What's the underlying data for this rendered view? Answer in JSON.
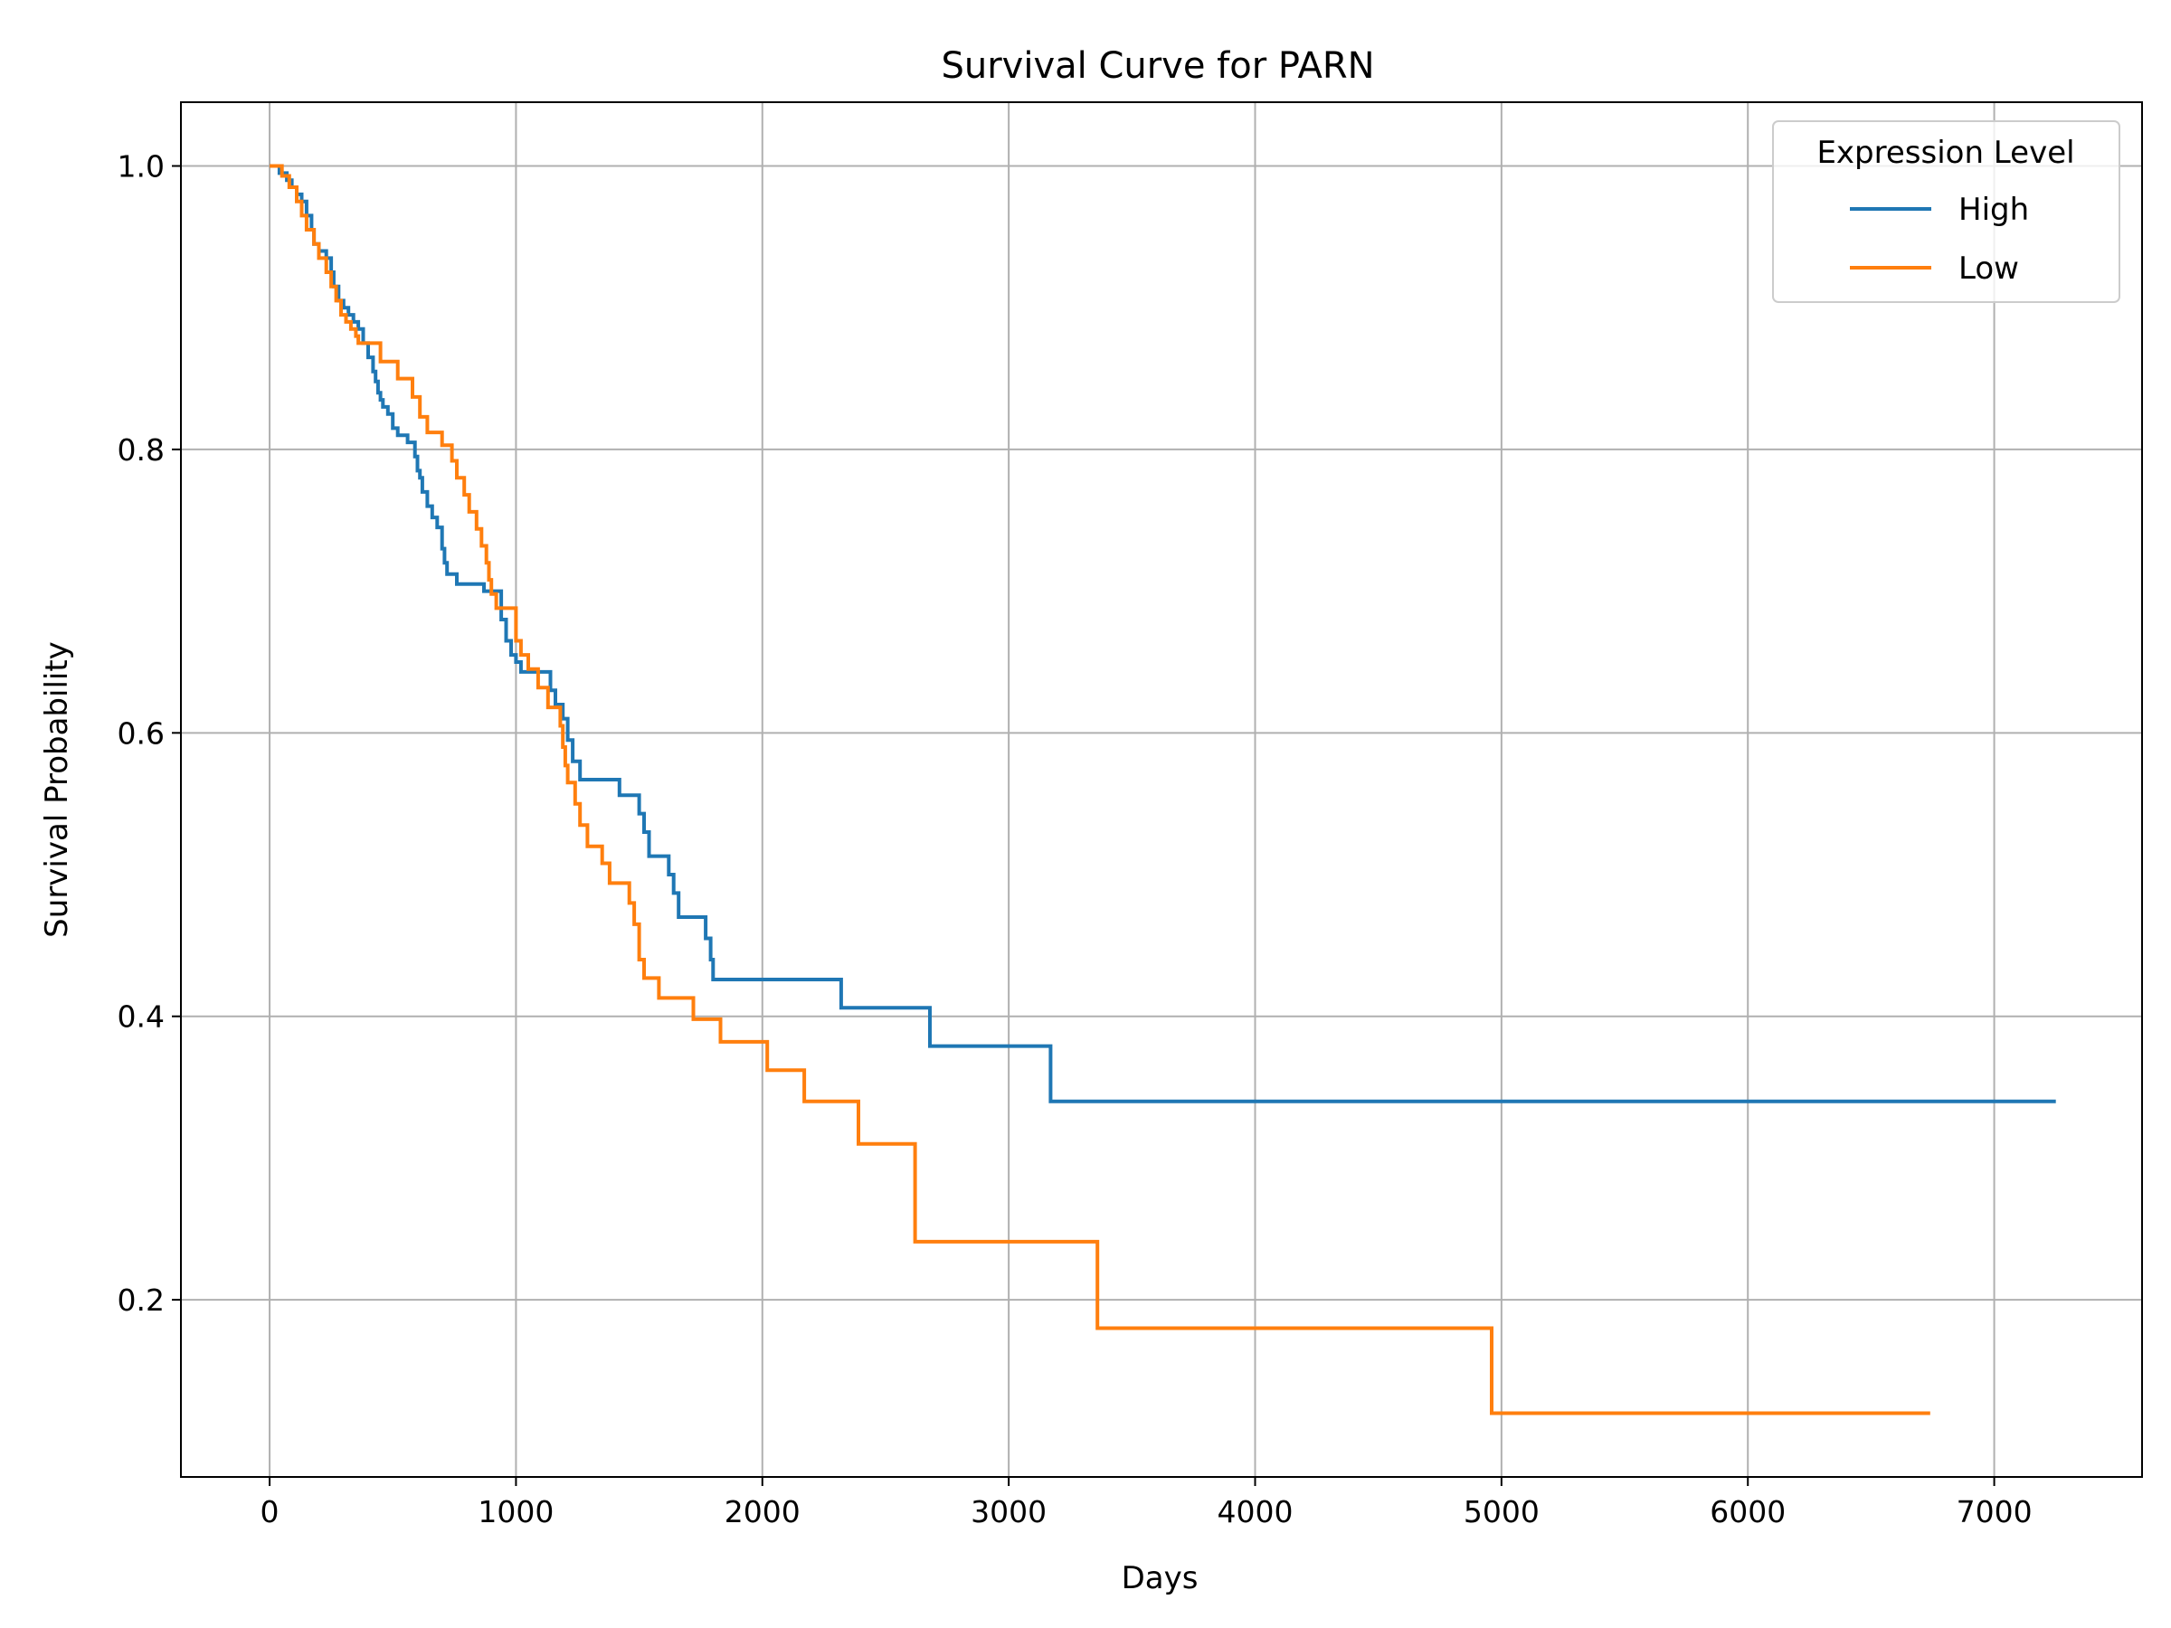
{
  "chart_data": {
    "type": "line",
    "step": true,
    "title": "Survival Curve for PARN",
    "xlabel": "Days",
    "ylabel": "Survival Probability",
    "xlim": [
      -360,
      7600
    ],
    "ylim": [
      0.075,
      1.045
    ],
    "xticks": [
      0,
      1000,
      2000,
      3000,
      4000,
      5000,
      6000,
      7000
    ],
    "yticks": [
      0.2,
      0.4,
      0.6,
      0.8,
      1.0
    ],
    "xtick_labels": [
      "0",
      "1000",
      "2000",
      "3000",
      "4000",
      "5000",
      "6000",
      "7000"
    ],
    "ytick_labels": [
      "0.2",
      "0.4",
      "0.6",
      "0.8",
      "1.0"
    ],
    "grid": true,
    "legend": {
      "title": "Expression Level",
      "placement": "top-right"
    },
    "series": [
      {
        "name": "High",
        "color": "#1f77b4",
        "x": [
          0,
          40,
          70,
          90,
          110,
          130,
          150,
          170,
          180,
          200,
          230,
          250,
          260,
          280,
          300,
          320,
          340,
          360,
          380,
          400,
          420,
          430,
          440,
          450,
          460,
          480,
          500,
          520,
          560,
          590,
          600,
          610,
          620,
          640,
          660,
          680,
          700,
          710,
          720,
          760,
          800,
          870,
          940,
          960,
          980,
          1000,
          1020,
          1040,
          1060,
          1140,
          1160,
          1190,
          1210,
          1230,
          1260,
          1420,
          1500,
          1520,
          1540,
          1620,
          1640,
          1660,
          1770,
          1790,
          1800,
          2320,
          2680,
          3170,
          7250
        ],
        "y": [
          1.0,
          0.995,
          0.99,
          0.985,
          0.98,
          0.975,
          0.965,
          0.955,
          0.945,
          0.94,
          0.935,
          0.925,
          0.915,
          0.905,
          0.9,
          0.895,
          0.89,
          0.885,
          0.875,
          0.865,
          0.855,
          0.848,
          0.84,
          0.835,
          0.83,
          0.825,
          0.815,
          0.81,
          0.805,
          0.795,
          0.785,
          0.78,
          0.77,
          0.76,
          0.752,
          0.745,
          0.73,
          0.72,
          0.712,
          0.705,
          0.705,
          0.7,
          0.68,
          0.665,
          0.655,
          0.65,
          0.643,
          0.643,
          0.643,
          0.63,
          0.62,
          0.61,
          0.595,
          0.58,
          0.567,
          0.556,
          0.543,
          0.53,
          0.513,
          0.5,
          0.487,
          0.47,
          0.455,
          0.44,
          0.426,
          0.406,
          0.379,
          0.34,
          0.34
        ]
      },
      {
        "name": "Low",
        "color": "#ff7f0e",
        "x": [
          0,
          50,
          80,
          110,
          130,
          150,
          180,
          200,
          230,
          250,
          270,
          290,
          310,
          330,
          350,
          360,
          450,
          520,
          580,
          610,
          640,
          700,
          740,
          760,
          790,
          810,
          840,
          860,
          880,
          890,
          900,
          920,
          1000,
          1020,
          1050,
          1090,
          1130,
          1180,
          1190,
          1200,
          1210,
          1240,
          1260,
          1290,
          1350,
          1380,
          1410,
          1460,
          1480,
          1500,
          1520,
          1580,
          1720,
          1830,
          2020,
          2170,
          2390,
          2620,
          3360,
          4960,
          6740
        ],
        "y": [
          1.0,
          0.993,
          0.985,
          0.975,
          0.965,
          0.955,
          0.945,
          0.935,
          0.925,
          0.915,
          0.905,
          0.895,
          0.89,
          0.885,
          0.88,
          0.875,
          0.862,
          0.85,
          0.837,
          0.823,
          0.812,
          0.803,
          0.792,
          0.78,
          0.768,
          0.756,
          0.744,
          0.732,
          0.72,
          0.708,
          0.698,
          0.688,
          0.665,
          0.655,
          0.645,
          0.632,
          0.618,
          0.605,
          0.59,
          0.577,
          0.565,
          0.55,
          0.535,
          0.52,
          0.508,
          0.494,
          0.494,
          0.48,
          0.465,
          0.44,
          0.427,
          0.413,
          0.398,
          0.382,
          0.362,
          0.34,
          0.31,
          0.241,
          0.18,
          0.12,
          0.12
        ]
      }
    ]
  }
}
